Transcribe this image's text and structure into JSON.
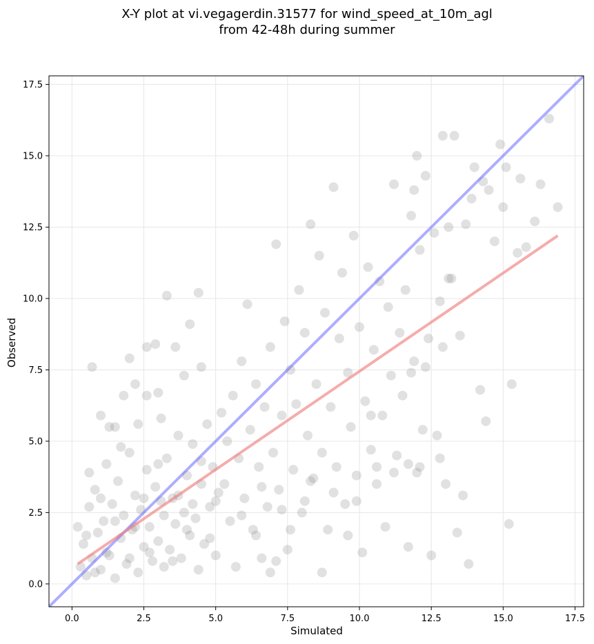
{
  "chart_data": {
    "type": "scatter",
    "title_lines": [
      "X-Y plot at vi.vegagerdin.31577 for wind_speed_at_10m_agl",
      "from 42-48h during summer"
    ],
    "xlabel": "Simulated",
    "ylabel": "Observed",
    "xlim": [
      -0.8,
      17.8
    ],
    "ylim": [
      -0.8,
      17.8
    ],
    "xticks": [
      0.0,
      2.5,
      5.0,
      7.5,
      10.0,
      12.5,
      15.0,
      17.5
    ],
    "yticks": [
      0.0,
      2.5,
      5.0,
      7.5,
      10.0,
      12.5,
      15.0,
      17.5
    ],
    "xtick_labels": [
      "0.0",
      "2.5",
      "5.0",
      "7.5",
      "10.0",
      "12.5",
      "15.0",
      "17.5"
    ],
    "ytick_labels": [
      "0.0",
      "2.5",
      "5.0",
      "7.5",
      "10.0",
      "12.5",
      "15.0",
      "17.5"
    ],
    "grid": true,
    "point_color": "#888888",
    "identity_line": {
      "color": "#6a6aff",
      "x": [
        -0.8,
        17.8
      ],
      "y": [
        -0.8,
        17.8
      ]
    },
    "fit_line": {
      "color": "#f08080",
      "x": [
        0.2,
        16.9
      ],
      "y": [
        0.7,
        12.2
      ]
    },
    "series": [
      {
        "points": [
          [
            0.3,
            0.6
          ],
          [
            0.4,
            1.4
          ],
          [
            0.5,
            0.3
          ],
          [
            0.6,
            2.7
          ],
          [
            0.7,
            0.9
          ],
          [
            0.8,
            3.3
          ],
          [
            0.9,
            1.8
          ],
          [
            1.0,
            0.5
          ],
          [
            1.1,
            2.2
          ],
          [
            1.2,
            4.2
          ],
          [
            1.3,
            1.0
          ],
          [
            1.4,
            2.8
          ],
          [
            1.5,
            0.2
          ],
          [
            1.6,
            3.6
          ],
          [
            1.7,
            1.6
          ],
          [
            1.8,
            2.4
          ],
          [
            1.9,
            0.7
          ],
          [
            2.0,
            4.6
          ],
          [
            2.1,
            1.9
          ],
          [
            2.2,
            3.1
          ],
          [
            2.3,
            0.4
          ],
          [
            2.4,
            2.6
          ],
          [
            2.5,
            1.3
          ],
          [
            2.6,
            4.0
          ],
          [
            2.7,
            2.0
          ],
          [
            2.8,
            0.8
          ],
          [
            2.9,
            3.4
          ],
          [
            3.0,
            1.5
          ],
          [
            3.1,
            2.9
          ],
          [
            3.2,
            0.6
          ],
          [
            3.3,
            4.4
          ],
          [
            3.4,
            1.2
          ],
          [
            3.5,
            3.0
          ],
          [
            3.6,
            2.1
          ],
          [
            3.7,
            5.2
          ],
          [
            3.8,
            0.9
          ],
          [
            3.9,
            2.5
          ],
          [
            4.0,
            3.8
          ],
          [
            4.1,
            1.7
          ],
          [
            4.2,
            4.9
          ],
          [
            4.3,
            2.3
          ],
          [
            4.4,
            0.5
          ],
          [
            4.5,
            3.5
          ],
          [
            4.6,
            1.4
          ],
          [
            4.7,
            5.6
          ],
          [
            4.8,
            2.7
          ],
          [
            4.9,
            4.1
          ],
          [
            5.0,
            1.0
          ],
          [
            5.1,
            3.2
          ],
          [
            5.2,
            6.0
          ],
          [
            0.2,
            2.0
          ],
          [
            0.5,
            1.7
          ],
          [
            0.8,
            0.4
          ],
          [
            1.0,
            3.0
          ],
          [
            1.2,
            1.1
          ],
          [
            1.5,
            2.2
          ],
          [
            1.7,
            4.8
          ],
          [
            2.0,
            0.9
          ],
          [
            2.2,
            2.0
          ],
          [
            2.5,
            3.0
          ],
          [
            2.7,
            1.1
          ],
          [
            3.0,
            4.2
          ],
          [
            3.2,
            2.4
          ],
          [
            3.5,
            0.8
          ],
          [
            3.7,
            3.1
          ],
          [
            4.0,
            1.9
          ],
          [
            4.2,
            2.8
          ],
          [
            4.5,
            4.3
          ],
          [
            4.8,
            1.6
          ],
          [
            5.0,
            2.9
          ],
          [
            0.7,
            7.6
          ],
          [
            1.5,
            5.5
          ],
          [
            2.0,
            7.9
          ],
          [
            2.3,
            5.6
          ],
          [
            2.6,
            8.3
          ],
          [
            2.9,
            8.4
          ],
          [
            3.3,
            10.1
          ],
          [
            3.6,
            8.3
          ],
          [
            4.1,
            9.1
          ],
          [
            4.4,
            10.2
          ],
          [
            3.0,
            6.7
          ],
          [
            2.2,
            7.0
          ],
          [
            1.8,
            6.6
          ],
          [
            1.0,
            5.9
          ],
          [
            0.6,
            3.9
          ],
          [
            1.3,
            5.5
          ],
          [
            2.6,
            6.6
          ],
          [
            3.1,
            5.8
          ],
          [
            3.9,
            7.3
          ],
          [
            4.5,
            7.6
          ],
          [
            5.3,
            3.5
          ],
          [
            5.4,
            5.0
          ],
          [
            5.5,
            2.2
          ],
          [
            5.6,
            6.6
          ],
          [
            5.7,
            0.6
          ],
          [
            5.8,
            4.4
          ],
          [
            5.9,
            7.8
          ],
          [
            6.0,
            3.0
          ],
          [
            6.1,
            9.8
          ],
          [
            6.2,
            5.4
          ],
          [
            6.3,
            1.9
          ],
          [
            6.4,
            7.0
          ],
          [
            6.5,
            4.1
          ],
          [
            6.6,
            0.9
          ],
          [
            6.7,
            6.2
          ],
          [
            6.8,
            2.7
          ],
          [
            6.9,
            8.3
          ],
          [
            7.0,
            4.6
          ],
          [
            7.1,
            11.9
          ],
          [
            7.2,
            3.3
          ],
          [
            7.3,
            5.9
          ],
          [
            7.4,
            9.2
          ],
          [
            7.5,
            1.2
          ],
          [
            7.6,
            7.5
          ],
          [
            7.7,
            4.0
          ],
          [
            7.8,
            6.3
          ],
          [
            7.9,
            10.3
          ],
          [
            8.0,
            2.5
          ],
          [
            8.1,
            8.8
          ],
          [
            8.2,
            5.2
          ],
          [
            8.3,
            12.6
          ],
          [
            8.4,
            3.7
          ],
          [
            8.5,
            7.0
          ],
          [
            8.6,
            11.5
          ],
          [
            8.7,
            4.6
          ],
          [
            8.8,
            9.5
          ],
          [
            8.9,
            1.9
          ],
          [
            9.0,
            6.2
          ],
          [
            9.1,
            13.9
          ],
          [
            9.2,
            4.1
          ],
          [
            9.3,
            8.6
          ],
          [
            9.4,
            10.9
          ],
          [
            9.5,
            2.8
          ],
          [
            9.6,
            7.4
          ],
          [
            9.7,
            5.5
          ],
          [
            9.8,
            12.2
          ],
          [
            9.9,
            3.8
          ],
          [
            10.0,
            9.0
          ],
          [
            10.1,
            1.1
          ],
          [
            10.2,
            6.4
          ],
          [
            10.3,
            11.1
          ],
          [
            10.4,
            4.7
          ],
          [
            10.5,
            8.2
          ],
          [
            10.6,
            3.5
          ],
          [
            10.7,
            10.6
          ],
          [
            10.8,
            5.9
          ],
          [
            10.9,
            2.0
          ],
          [
            11.0,
            9.7
          ],
          [
            11.1,
            7.3
          ],
          [
            11.2,
            14.0
          ],
          [
            11.3,
            4.5
          ],
          [
            11.4,
            8.8
          ],
          [
            11.5,
            6.6
          ],
          [
            11.6,
            10.3
          ],
          [
            11.7,
            1.3
          ],
          [
            11.8,
            12.9
          ],
          [
            11.9,
            7.8
          ],
          [
            12.0,
            3.9
          ],
          [
            12.1,
            11.7
          ],
          [
            12.2,
            5.4
          ],
          [
            12.3,
            14.3
          ],
          [
            12.4,
            8.6
          ],
          [
            12.5,
            1.0
          ],
          [
            12.6,
            12.3
          ],
          [
            12.7,
            5.2
          ],
          [
            12.8,
            9.9
          ],
          [
            12.9,
            15.7
          ],
          [
            13.0,
            3.5
          ],
          [
            13.1,
            12.5
          ],
          [
            13.2,
            10.7
          ],
          [
            13.3,
            15.7
          ],
          [
            13.4,
            1.8
          ],
          [
            13.5,
            8.7
          ],
          [
            13.6,
            3.1
          ],
          [
            13.7,
            12.6
          ],
          [
            13.8,
            0.7
          ],
          [
            13.9,
            13.5
          ],
          [
            14.0,
            14.6
          ],
          [
            14.2,
            6.8
          ],
          [
            14.4,
            5.7
          ],
          [
            14.5,
            13.8
          ],
          [
            14.7,
            12.0
          ],
          [
            14.9,
            15.4
          ],
          [
            15.1,
            14.6
          ],
          [
            15.2,
            2.1
          ],
          [
            15.3,
            7.0
          ],
          [
            15.5,
            11.6
          ],
          [
            15.6,
            14.2
          ],
          [
            15.8,
            11.8
          ],
          [
            16.1,
            12.7
          ],
          [
            16.3,
            14.0
          ],
          [
            16.6,
            16.3
          ],
          [
            16.9,
            13.2
          ],
          [
            14.3,
            14.1
          ],
          [
            15.0,
            13.2
          ],
          [
            12.0,
            15.0
          ],
          [
            11.9,
            13.8
          ],
          [
            9.1,
            3.2
          ],
          [
            8.7,
            0.4
          ],
          [
            9.6,
            1.7
          ],
          [
            6.4,
            1.7
          ],
          [
            7.1,
            0.8
          ],
          [
            7.6,
            1.9
          ],
          [
            8.1,
            2.9
          ],
          [
            6.9,
            0.4
          ],
          [
            5.9,
            2.4
          ],
          [
            6.6,
            3.4
          ],
          [
            7.3,
            2.6
          ],
          [
            8.3,
            3.6
          ],
          [
            9.9,
            2.9
          ],
          [
            10.6,
            4.1
          ],
          [
            11.2,
            3.9
          ],
          [
            12.1,
            4.1
          ],
          [
            12.8,
            4.4
          ],
          [
            11.7,
            4.2
          ],
          [
            10.4,
            5.9
          ],
          [
            11.8,
            7.4
          ],
          [
            12.3,
            7.6
          ],
          [
            13.1,
            10.7
          ],
          [
            12.9,
            8.3
          ]
        ]
      }
    ]
  }
}
